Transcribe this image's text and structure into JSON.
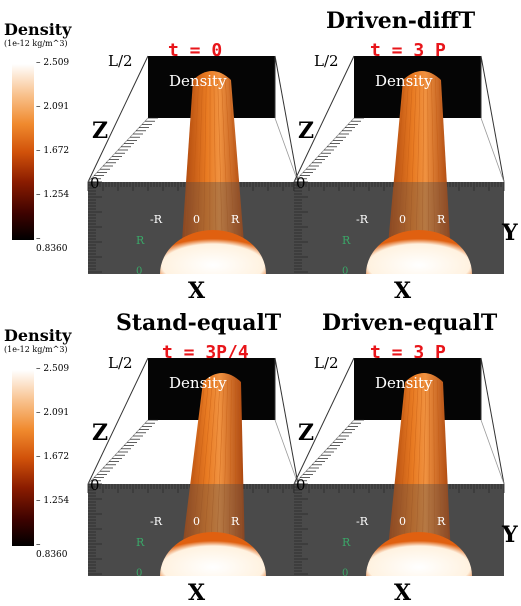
{
  "colorbars": [
    {
      "title": "Density",
      "unit": "(1e-12 kg/m^3)",
      "ticks": [
        "2.509",
        "2.091",
        "1.672",
        "1.254",
        "0.8360"
      ]
    },
    {
      "title": "Density",
      "unit": "(1e-12 kg/m^3)",
      "ticks": [
        "2.509",
        "2.091",
        "1.672",
        "1.254",
        "0.8360"
      ]
    }
  ],
  "panels": [
    {
      "title": "",
      "time": "t = 0",
      "box_label": "Density",
      "top_label": "L/2",
      "bottom_label": "0",
      "z_label": "Z",
      "x_label": "X",
      "y_label": "",
      "neg_r": "-R",
      "zero": "0",
      "pos_r": "R",
      "side_r": "R",
      "side_zero": "0",
      "tilt": 0
    },
    {
      "title": "Driven-diffT",
      "time": "t = 3 P",
      "box_label": "Density",
      "top_label": "L/2",
      "bottom_label": "0",
      "z_label": "Z",
      "x_label": "X",
      "y_label": "Y",
      "neg_r": "-R",
      "zero": "0",
      "pos_r": "R",
      "side_r": "R",
      "side_zero": "0",
      "tilt": 4
    },
    {
      "title": "Stand-equalT",
      "time": "t = 3P/4",
      "box_label": "Density",
      "top_label": "L/2",
      "bottom_label": "0",
      "z_label": "Z",
      "x_label": "X",
      "y_label": "",
      "neg_r": "-R",
      "zero": "0",
      "pos_r": "R",
      "side_r": "R",
      "side_zero": "0",
      "tilt": 10
    },
    {
      "title": "Driven-equalT",
      "time": "t = 3 P",
      "box_label": "Density",
      "top_label": "L/2",
      "bottom_label": "0",
      "z_label": "Z",
      "x_label": "X",
      "y_label": "Y",
      "neg_r": "-R",
      "zero": "0",
      "pos_r": "R",
      "side_r": "R",
      "side_zero": "0",
      "tilt": 6
    }
  ],
  "colors": {
    "tube": "#e87a22",
    "tube_dark": "#a8430d",
    "floor": "#4a4a4a",
    "time_text": "#e8151a",
    "green_label": "#3aa868"
  }
}
